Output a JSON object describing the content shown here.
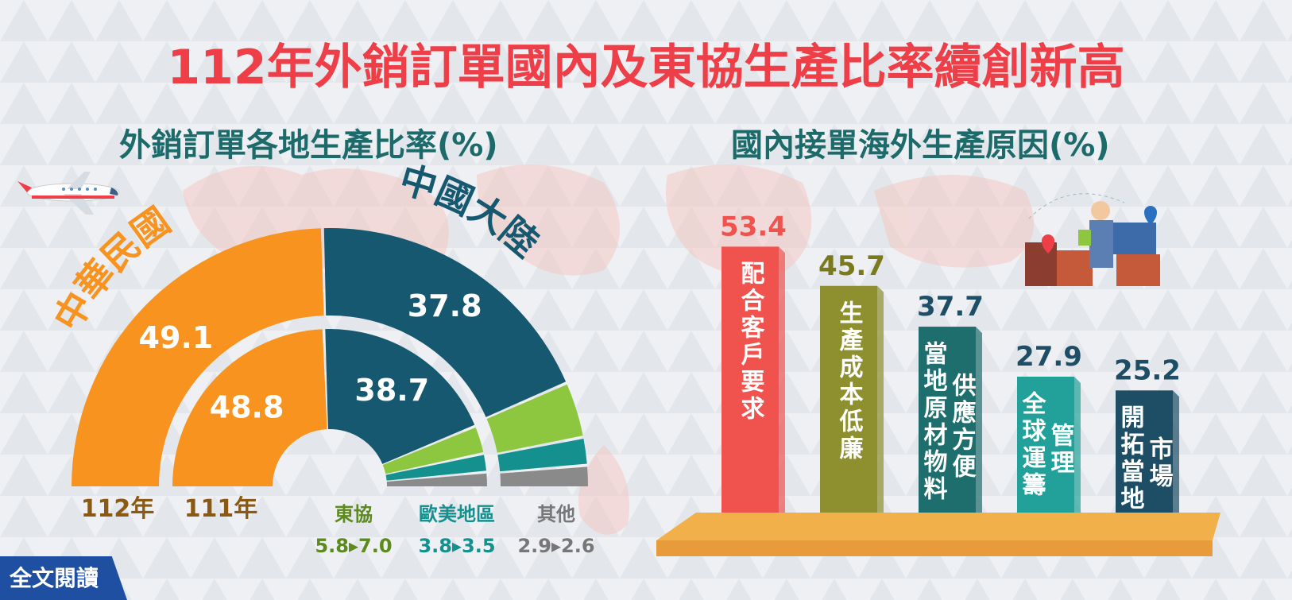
{
  "title": "112年外銷訂單國內及東協生產比率續創新高",
  "left_subtitle": "外銷訂單各地生產比率(%)",
  "right_subtitle": "國內接單海外生產原因(%)",
  "read_full_text": "全文閱讀",
  "colors": {
    "title": "#ee3f48",
    "subtitle": "#1c6a6a",
    "roc": "#f7931e",
    "china": "#155870",
    "asean": "#8dc63f",
    "euam": "#14908f",
    "other": "#8a8a8a",
    "platform": "#e79b3a"
  },
  "icons": [
    "airplane-icon",
    "logistics-worker-icon",
    "world-map-icon"
  ],
  "chart_data": [
    {
      "type": "pie",
      "variant": "nested-half-donut",
      "title": "外銷訂單各地生產比率(%)",
      "rings": [
        "112年",
        "111年"
      ],
      "series": [
        {
          "name": "中華民國",
          "values": [
            49.1,
            48.8
          ]
        },
        {
          "name": "中國大陸",
          "values": [
            37.8,
            38.7
          ]
        },
        {
          "name": "東協",
          "values": [
            7.0,
            5.8
          ]
        },
        {
          "name": "歐美地區",
          "values": [
            3.5,
            3.8
          ]
        },
        {
          "name": "其他",
          "values": [
            2.6,
            2.9
          ]
        }
      ],
      "labels": {
        "roc": "中華民國",
        "china": "中國大陸",
        "asean": "東協",
        "euam": "歐美地區",
        "other": "其他",
        "ring_outer": "112年",
        "ring_inner": "111年",
        "asean_change": "5.8▸7.0",
        "euam_change": "3.8▸3.5",
        "other_change": "2.9▸2.6"
      }
    },
    {
      "type": "bar",
      "title": "國內接單海外生產原因(%)",
      "categories": [
        "配合客戶要求",
        "生產成本低廉",
        "當地原物料供應方便",
        "全球運籌管理",
        "開拓當地市場"
      ],
      "values": [
        53.4,
        45.7,
        37.7,
        27.9,
        25.2
      ],
      "bar_text": [
        [
          "配合客戶要求"
        ],
        [
          "生產成本低廉"
        ],
        [
          "當地原材物料",
          "供應方便"
        ],
        [
          "全球運籌",
          "管理"
        ],
        [
          "開拓當地",
          "市場"
        ]
      ],
      "colors": [
        "#f0534e",
        "#8e8f2e",
        "#1f6e6e",
        "#22a19a",
        "#1d4e66"
      ]
    }
  ]
}
